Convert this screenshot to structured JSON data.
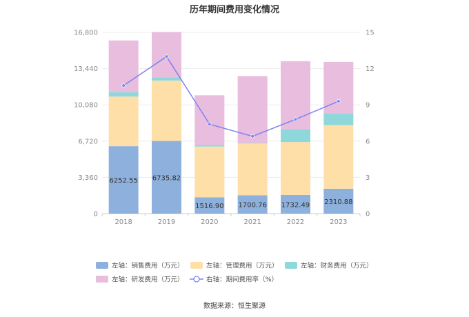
{
  "chart_data": {
    "type": "bar",
    "title": "历年期间费用变化情况",
    "categories": [
      "2018",
      "2019",
      "2020",
      "2021",
      "2022",
      "2023"
    ],
    "left_axis": {
      "min": 0,
      "max": 16800,
      "ticks": [
        "0",
        "3,360",
        "6,720",
        "10,080",
        "13,440",
        "16,800"
      ]
    },
    "right_axis": {
      "min": 0,
      "max": 15,
      "ticks": [
        "0",
        "3",
        "6",
        "9",
        "12",
        "15"
      ]
    },
    "stacked_series": [
      {
        "name": "左轴：销售费用（万元）",
        "color": "#8eb0dc",
        "values": [
          6252.55,
          6735.82,
          1516.9,
          1700.76,
          1732.49,
          2310.88
        ],
        "labels": [
          "6252.55",
          "6735.82",
          "1516.90",
          "1700.76",
          "1732.49",
          "2310.88"
        ]
      },
      {
        "name": "左轴：管理费用（万元）",
        "color": "#ffdfa8",
        "values": [
          4600,
          5600,
          4700,
          4800,
          4900,
          5900
        ]
      },
      {
        "name": "左轴：财务费用（万元）",
        "color": "#8ed8dc",
        "values": [
          400,
          300,
          150,
          50,
          1200,
          1050
        ]
      },
      {
        "name": "左轴：研发费用（万元）",
        "color": "#e8bddd",
        "values": [
          4800,
          4200,
          4600,
          6200,
          6300,
          4800
        ]
      }
    ],
    "line_series": {
      "name": "右轴：期间费用率（%）",
      "color": "#7b83f0",
      "values": [
        10.6,
        13.0,
        7.4,
        6.4,
        7.8,
        9.3
      ]
    },
    "grid": true,
    "legend_position": "bottom"
  },
  "source_text": "数据来源：恒生聚源"
}
